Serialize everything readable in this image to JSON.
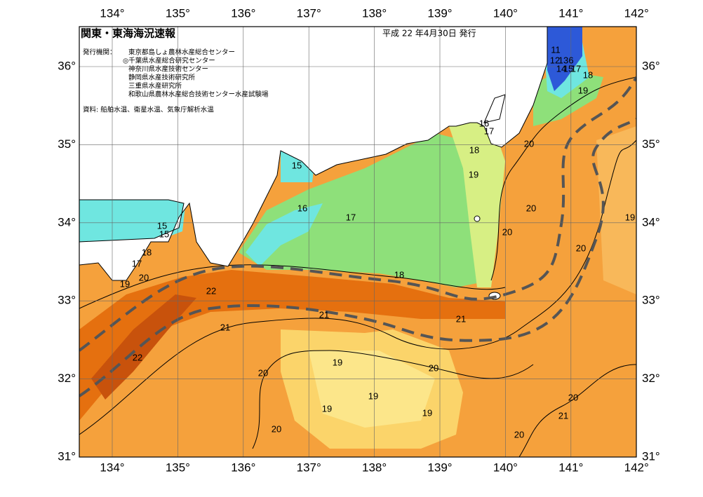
{
  "header": {
    "title": "関東・東海海況速報",
    "date": "平成 22 年4月30日 発行"
  },
  "issuers": {
    "label": "発行機関：",
    "items": [
      "東京都島しょ農林水産総合センター",
      "◎千葉県水産総合研究センター",
      "神奈川県水産技術センター",
      "静岡県水産技術研究所",
      "三重県水産研究所",
      "和歌山県農林水産総合技術センター水産試験場"
    ]
  },
  "source": "資料: 船舶水温、衛星水温、気象庁解析水温",
  "longitude_labels": [
    "134°",
    "135°",
    "136°",
    "137°",
    "138°",
    "139°",
    "140°",
    "141°",
    "142°"
  ],
  "latitude_labels": [
    "36°",
    "35°",
    "34°",
    "33°",
    "32°",
    "31°"
  ],
  "contour_labels": [
    11,
    12,
    13,
    6,
    14,
    15,
    17,
    18,
    19,
    16,
    17,
    18,
    19,
    20,
    20,
    20,
    20,
    19,
    15,
    16,
    17,
    15,
    15,
    18,
    17,
    19,
    20,
    22,
    18,
    21,
    21,
    21,
    22,
    20,
    19,
    20,
    19,
    19,
    19,
    20,
    21,
    20,
    20
  ]
}
